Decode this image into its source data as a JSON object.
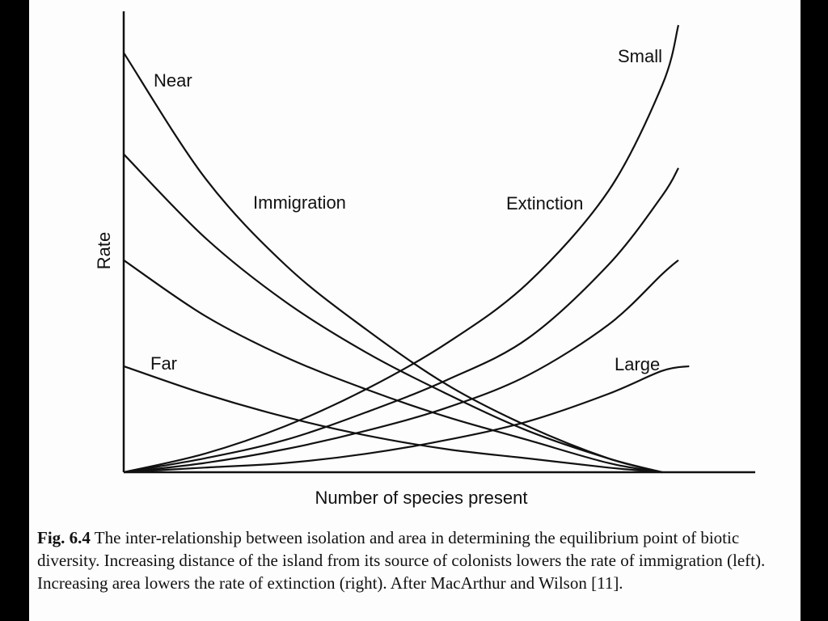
{
  "chart_data": {
    "type": "line",
    "xlabel": "Number of species present",
    "ylabel": "Rate",
    "xlim": [
      0,
      1
    ],
    "ylim": [
      0,
      1
    ],
    "grid": false,
    "legend": "none",
    "annotations": [
      {
        "text": "Near",
        "near": "top-left"
      },
      {
        "text": "Far",
        "near": "lower-left"
      },
      {
        "text": "Immigration",
        "near": "upper-middle"
      },
      {
        "text": "Extinction",
        "near": "upper-right"
      },
      {
        "text": "Small",
        "near": "top-right"
      },
      {
        "text": "Large",
        "near": "lower-right"
      }
    ],
    "series": [
      {
        "group": "immigration",
        "x": [
          0.0,
          0.15,
          0.3,
          0.45,
          0.6,
          0.75,
          0.9,
          1.0
        ],
        "y": [
          0.91,
          0.64,
          0.45,
          0.31,
          0.19,
          0.1,
          0.03,
          0.0
        ]
      },
      {
        "group": "immigration",
        "x": [
          0.0,
          0.15,
          0.3,
          0.45,
          0.6,
          0.75,
          0.9,
          1.0
        ],
        "y": [
          0.69,
          0.51,
          0.37,
          0.26,
          0.17,
          0.09,
          0.03,
          0.0
        ]
      },
      {
        "group": "immigration",
        "x": [
          0.0,
          0.15,
          0.3,
          0.45,
          0.6,
          0.75,
          0.9,
          1.0
        ],
        "y": [
          0.46,
          0.34,
          0.25,
          0.18,
          0.12,
          0.07,
          0.02,
          0.0
        ]
      },
      {
        "group": "immigration",
        "x": [
          0.0,
          0.15,
          0.3,
          0.45,
          0.6,
          0.75,
          0.9,
          1.0
        ],
        "y": [
          0.23,
          0.17,
          0.12,
          0.08,
          0.05,
          0.03,
          0.01,
          0.0
        ]
      },
      {
        "group": "extinction",
        "x": [
          0.0,
          0.15,
          0.3,
          0.45,
          0.6,
          0.75,
          0.9,
          1.0,
          1.03
        ],
        "y": [
          0.0,
          0.04,
          0.1,
          0.18,
          0.28,
          0.41,
          0.61,
          0.84,
          0.97
        ]
      },
      {
        "group": "extinction",
        "x": [
          0.0,
          0.15,
          0.3,
          0.45,
          0.6,
          0.75,
          0.9,
          1.0,
          1.03
        ],
        "y": [
          0.0,
          0.03,
          0.07,
          0.13,
          0.2,
          0.29,
          0.45,
          0.6,
          0.66
        ]
      },
      {
        "group": "extinction",
        "x": [
          0.0,
          0.15,
          0.3,
          0.45,
          0.6,
          0.75,
          0.9,
          1.0,
          1.03
        ],
        "y": [
          0.0,
          0.02,
          0.05,
          0.09,
          0.14,
          0.21,
          0.32,
          0.43,
          0.46
        ]
      },
      {
        "group": "extinction",
        "x": [
          0.0,
          0.15,
          0.3,
          0.45,
          0.6,
          0.75,
          0.9,
          1.0,
          1.05
        ],
        "y": [
          0.0,
          0.01,
          0.02,
          0.04,
          0.07,
          0.11,
          0.17,
          0.22,
          0.23
        ]
      }
    ]
  },
  "caption": {
    "fig_label": "Fig. 6.4",
    "text": "The inter-relationship between isolation and area in determining the equilibrium point of biotic diversity. Increasing distance of the island from its source of colonists lowers the rate of immigration (left). Increasing area lowers the rate of extinction (right). After MacArthur and Wilson [11]."
  },
  "colors": {
    "ink": "#111111",
    "paper": "#fdfdfd",
    "border": "#000000"
  }
}
